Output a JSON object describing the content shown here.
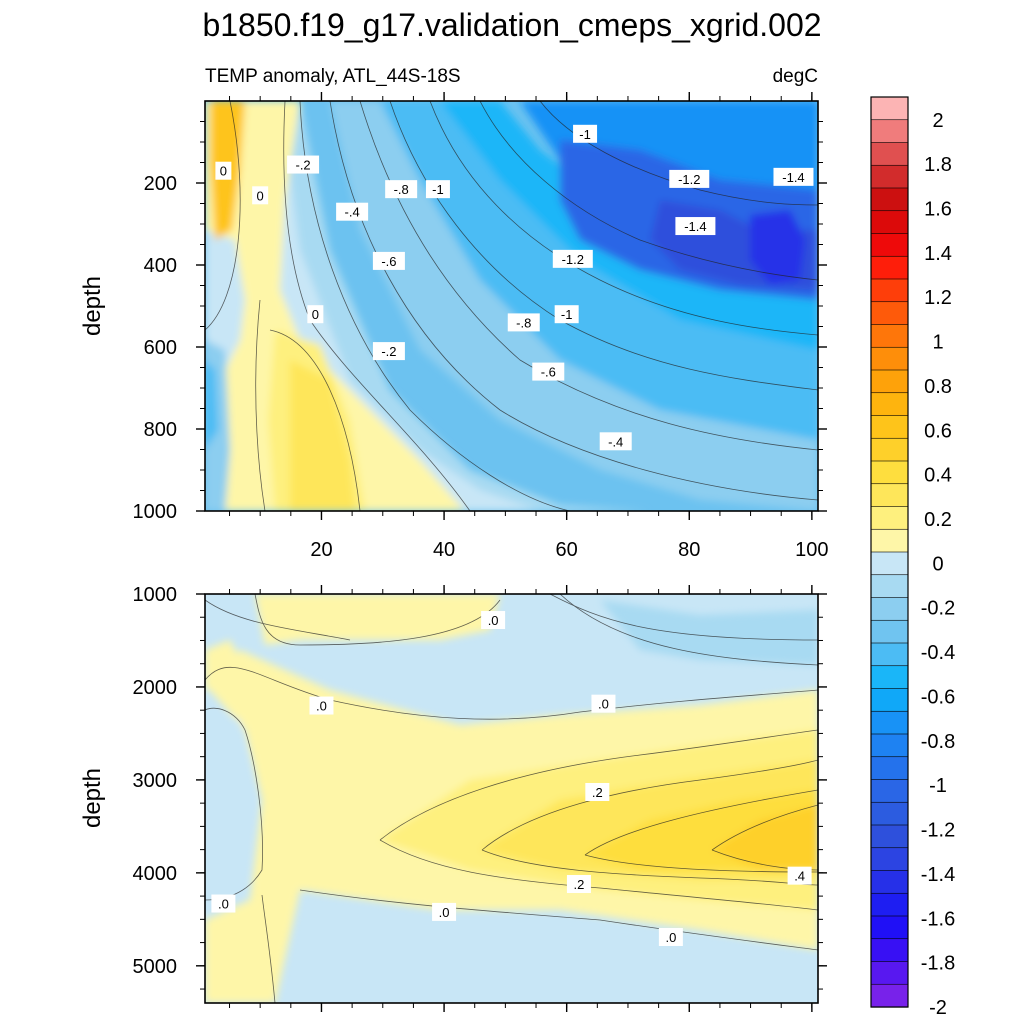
{
  "chart_data": {
    "type": "heatmap",
    "title": "b1850.f19_g17.validation_cmeps_xgrid.002",
    "subtitle_left": "TEMP anomaly, ATL_44S-18S",
    "subtitle_right": "degC",
    "ylabel": "depth",
    "x_tick_labels": [
      "20",
      "40",
      "60",
      "80",
      "100"
    ],
    "x_ticks": [
      20,
      40,
      60,
      80,
      100
    ],
    "xlim": [
      1,
      101
    ],
    "panels": [
      {
        "name": "upper",
        "ylim": [
          0,
          1000
        ],
        "y_ticks": [
          200,
          400,
          600,
          800,
          1000
        ],
        "y_tick_labels": [
          "200",
          "400",
          "600",
          "800",
          "1000"
        ],
        "contour_labels": [
          {
            "text": "0",
            "x": 4,
            "y": 170
          },
          {
            "text": "0",
            "x": 10,
            "y": 230
          },
          {
            "text": "-.2",
            "x": 17,
            "y": 155
          },
          {
            "text": "-.4",
            "x": 25,
            "y": 270
          },
          {
            "text": "-.8",
            "x": 33,
            "y": 215
          },
          {
            "text": "-1",
            "x": 39,
            "y": 215
          },
          {
            "text": "-.6",
            "x": 31,
            "y": 390
          },
          {
            "text": "0",
            "x": 19,
            "y": 520
          },
          {
            "text": "-.2",
            "x": 31,
            "y": 610
          },
          {
            "text": "-.8",
            "x": 53,
            "y": 540
          },
          {
            "text": "-1",
            "x": 60,
            "y": 520
          },
          {
            "text": "-.6",
            "x": 57,
            "y": 660
          },
          {
            "text": "-.4",
            "x": 68,
            "y": 830
          },
          {
            "text": "-1.2",
            "x": 61,
            "y": 385
          },
          {
            "text": "-1",
            "x": 63,
            "y": 80
          },
          {
            "text": "-1.2",
            "x": 80,
            "y": 190
          },
          {
            "text": "-1.4",
            "x": 81,
            "y": 305
          },
          {
            "text": "-1.4",
            "x": 97,
            "y": 185
          }
        ]
      },
      {
        "name": "lower",
        "ylim": [
          1000,
          5400
        ],
        "y_ticks": [
          1000,
          2000,
          3000,
          4000,
          5000
        ],
        "y_tick_labels": [
          "1000",
          "2000",
          "3000",
          "4000",
          "5000"
        ],
        "contour_labels": [
          {
            "text": ".0",
            "x": 48,
            "y": 1280
          },
          {
            "text": ".0",
            "x": 20,
            "y": 2200
          },
          {
            "text": ".0",
            "x": 66,
            "y": 2180
          },
          {
            "text": ".2",
            "x": 65,
            "y": 3130
          },
          {
            "text": ".2",
            "x": 62,
            "y": 4120
          },
          {
            "text": ".4",
            "x": 98,
            "y": 4030
          },
          {
            "text": ".0",
            "x": 4,
            "y": 4330
          },
          {
            "text": ".0",
            "x": 40,
            "y": 4420
          },
          {
            "text": ".0",
            "x": 77,
            "y": 4690
          }
        ]
      }
    ],
    "colorbar": {
      "labels": [
        "2",
        "1.8",
        "1.6",
        "1.4",
        "1.2",
        "1",
        "0.8",
        "0.6",
        "0.4",
        "0.2",
        "0",
        "-0.2",
        "-0.4",
        "-0.6",
        "-0.8",
        "-1",
        "-1.2",
        "-1.4",
        "-1.6",
        "-1.8",
        "-2"
      ],
      "label_values": [
        2,
        1.8,
        1.6,
        1.4,
        1.2,
        1,
        0.8,
        0.6,
        0.4,
        0.2,
        0,
        -0.2,
        -0.4,
        -0.6,
        -0.8,
        -1,
        -1.2,
        -1.4,
        -1.6,
        -1.8,
        -2
      ],
      "colors": [
        "#fcb4b4",
        "#f07c7c",
        "#e05050",
        "#d22c2c",
        "#cc1010",
        "#dc0a0a",
        "#ee0a0a",
        "#fe1e0a",
        "#fe3e0a",
        "#fe5a0a",
        "#fe760a",
        "#fe8e0a",
        "#fea20a",
        "#feb40e",
        "#fec41a",
        "#fed02a",
        "#fede3e",
        "#fee65a",
        "#fef07e",
        "#fef6a8",
        "#c8e6f6",
        "#a8daf2",
        "#8ccef0",
        "#70c4f0",
        "#4cbcf4",
        "#1ab6f8",
        "#10a8f8",
        "#1892f6",
        "#1e82f2",
        "#2472ec",
        "#2a66e6",
        "#2c5ce0",
        "#2e50dc",
        "#2c44e2",
        "#2630e8",
        "#1e1ef2",
        "#2010f6",
        "#3810f4",
        "#5818f0",
        "#7822ea"
      ]
    }
  }
}
